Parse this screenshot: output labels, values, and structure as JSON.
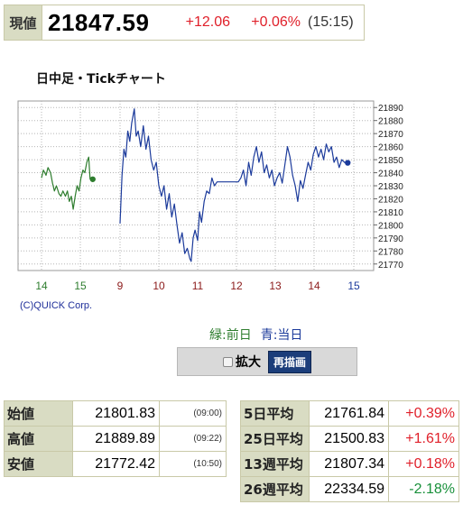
{
  "quote": {
    "label": "現値",
    "value": "21847.59",
    "change": "+12.06",
    "change_pct": "+0.06%",
    "time": "(15:15)"
  },
  "chart_title": "日中足・Tickチャート",
  "copyright": "(C)QUICK Corp.",
  "legend": {
    "prev": "緑:前日",
    "curr": "青:当日"
  },
  "controls": {
    "zoom_label": "拡大",
    "zoom_checked": false,
    "redraw_label": "再描画"
  },
  "stats_left": [
    {
      "label": "始値",
      "value": "21801.83",
      "time": "(09:00)"
    },
    {
      "label": "高値",
      "value": "21889.89",
      "time": "(09:22)"
    },
    {
      "label": "安値",
      "value": "21772.42",
      "time": "(10:50)"
    }
  ],
  "stats_right": [
    {
      "label": "5日平均",
      "value": "21761.84",
      "pct": "+0.39%"
    },
    {
      "label": "25日平均",
      "value": "21500.83",
      "pct": "+1.61%"
    },
    {
      "label": "13週平均",
      "value": "21807.34",
      "pct": "+0.18%"
    },
    {
      "label": "26週平均",
      "value": "22334.59",
      "pct": "-2.18%"
    }
  ],
  "chart_data": {
    "type": "line",
    "title": "",
    "xlabel": "",
    "ylabel": "",
    "x_ticks": [
      "14",
      "15",
      "9",
      "10",
      "11",
      "12",
      "13",
      "14",
      "15"
    ],
    "x_tick_colors": [
      "#2e7d2e",
      "#2e7d2e",
      "#8b1a1a",
      "#8b1a1a",
      "#8b1a1a",
      "#8b1a1a",
      "#8b1a1a",
      "#8b1a1a",
      "#1b3a9b"
    ],
    "y_ticks": [
      21890,
      21880,
      21870,
      21860,
      21850,
      21840,
      21830,
      21820,
      21810,
      21800,
      21790,
      21780,
      21770
    ],
    "ylim": [
      21765,
      21895
    ],
    "grid": true,
    "series": [
      {
        "color": "#2e7d2e",
        "end_marker_color": "#2e7d2e",
        "points": [
          [
            "14:00",
            21836
          ],
          [
            "14:03",
            21842
          ],
          [
            "14:07",
            21838
          ],
          [
            "14:10",
            21844
          ],
          [
            "14:14",
            21840
          ],
          [
            "14:17",
            21832
          ],
          [
            "14:20",
            21826
          ],
          [
            "14:23",
            21830
          ],
          [
            "14:27",
            21824
          ],
          [
            "14:30",
            21822
          ],
          [
            "14:33",
            21826
          ],
          [
            "14:37",
            21822
          ],
          [
            "14:40",
            21826
          ],
          [
            "14:43",
            21818
          ],
          [
            "14:46",
            21822
          ],
          [
            "14:49",
            21812
          ],
          [
            "14:52",
            21822
          ],
          [
            "14:55",
            21830
          ],
          [
            "14:58",
            21826
          ],
          [
            "15:01",
            21836
          ],
          [
            "15:04",
            21842
          ],
          [
            "15:07",
            21840
          ],
          [
            "15:10",
            21848
          ],
          [
            "15:13",
            21852
          ],
          [
            "15:15",
            21835
          ]
        ]
      },
      {
        "color": "#1b3a9b",
        "end_marker_color": "#1b3a9b",
        "points": [
          [
            "09:00",
            21801
          ],
          [
            "09:03",
            21838
          ],
          [
            "09:06",
            21858
          ],
          [
            "09:09",
            21852
          ],
          [
            "09:12",
            21872
          ],
          [
            "09:15",
            21864
          ],
          [
            "09:18",
            21878
          ],
          [
            "09:22",
            21889
          ],
          [
            "09:25",
            21868
          ],
          [
            "09:28",
            21872
          ],
          [
            "09:32",
            21860
          ],
          [
            "09:36",
            21876
          ],
          [
            "09:40",
            21858
          ],
          [
            "09:44",
            21868
          ],
          [
            "09:48",
            21850
          ],
          [
            "09:52",
            21842
          ],
          [
            "09:56",
            21848
          ],
          [
            "10:00",
            21830
          ],
          [
            "10:04",
            21822
          ],
          [
            "10:08",
            21830
          ],
          [
            "10:12",
            21812
          ],
          [
            "10:16",
            21824
          ],
          [
            "10:20",
            21806
          ],
          [
            "10:24",
            21816
          ],
          [
            "10:28",
            21800
          ],
          [
            "10:32",
            21786
          ],
          [
            "10:36",
            21794
          ],
          [
            "10:40",
            21778
          ],
          [
            "10:44",
            21782
          ],
          [
            "10:48",
            21774
          ],
          [
            "10:50",
            21772
          ],
          [
            "10:53",
            21790
          ],
          [
            "10:56",
            21796
          ],
          [
            "11:00",
            21788
          ],
          [
            "11:03",
            21810
          ],
          [
            "11:06",
            21802
          ],
          [
            "11:10",
            21818
          ],
          [
            "11:14",
            21826
          ],
          [
            "11:18",
            21824
          ],
          [
            "11:22",
            21836
          ],
          [
            "11:26",
            21830
          ],
          [
            "11:30",
            21833
          ],
          [
            "12:30",
            21833
          ],
          [
            "12:34",
            21836
          ],
          [
            "12:38",
            21842
          ],
          [
            "12:42",
            21830
          ],
          [
            "12:46",
            21848
          ],
          [
            "12:50",
            21838
          ],
          [
            "12:54",
            21852
          ],
          [
            "12:58",
            21860
          ],
          [
            "13:02",
            21848
          ],
          [
            "13:06",
            21856
          ],
          [
            "13:10",
            21840
          ],
          [
            "13:14",
            21846
          ],
          [
            "13:18",
            21836
          ],
          [
            "13:22",
            21842
          ],
          [
            "13:26",
            21830
          ],
          [
            "13:30",
            21836
          ],
          [
            "13:34",
            21840
          ],
          [
            "13:38",
            21832
          ],
          [
            "13:42",
            21846
          ],
          [
            "13:46",
            21860
          ],
          [
            "13:50",
            21852
          ],
          [
            "13:54",
            21838
          ],
          [
            "13:58",
            21830
          ],
          [
            "14:02",
            21818
          ],
          [
            "14:06",
            21834
          ],
          [
            "14:10",
            21828
          ],
          [
            "14:14",
            21838
          ],
          [
            "14:18",
            21848
          ],
          [
            "14:22",
            21842
          ],
          [
            "14:26",
            21854
          ],
          [
            "14:30",
            21860
          ],
          [
            "14:34",
            21852
          ],
          [
            "14:38",
            21858
          ],
          [
            "14:42",
            21850
          ],
          [
            "14:46",
            21862
          ],
          [
            "14:50",
            21856
          ],
          [
            "14:54",
            21860
          ],
          [
            "14:58",
            21848
          ],
          [
            "15:02",
            21852
          ],
          [
            "15:06",
            21844
          ],
          [
            "15:10",
            21850
          ],
          [
            "15:15",
            21847.59
          ]
        ]
      }
    ]
  }
}
